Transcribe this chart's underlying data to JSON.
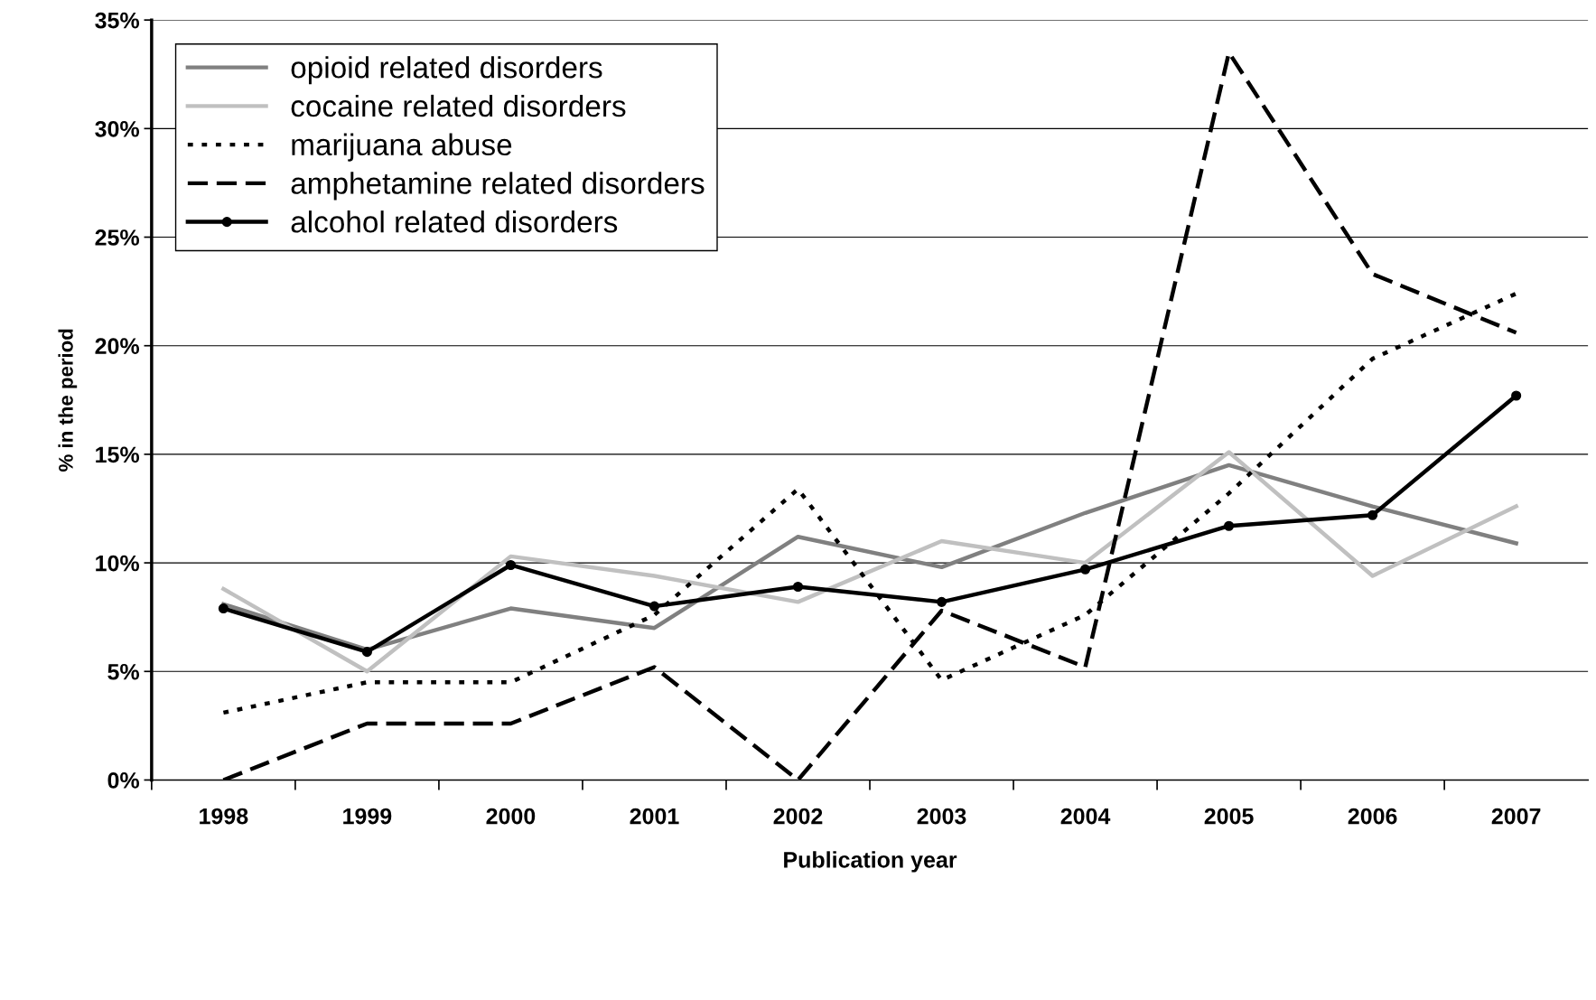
{
  "chart_data": {
    "type": "line",
    "xlabel": "Publication year",
    "ylabel": "% in the period",
    "categories": [
      "1998",
      "1999",
      "2000",
      "2001",
      "2002",
      "2003",
      "2004",
      "2005",
      "2006",
      "2007"
    ],
    "ylim": [
      0,
      35
    ],
    "yticks": [
      {
        "value": 0,
        "label": "0%"
      },
      {
        "value": 5,
        "label": "5%"
      },
      {
        "value": 10,
        "label": "10%"
      },
      {
        "value": 15,
        "label": "15%"
      },
      {
        "value": 20,
        "label": "20%"
      },
      {
        "value": 25,
        "label": "25%"
      },
      {
        "value": 30,
        "label": "30%"
      },
      {
        "value": 35,
        "label": "35%"
      }
    ],
    "grid": "y",
    "legend": "top left",
    "series": [
      {
        "name": "opioid related disorders",
        "color": "#808080",
        "line_style": "solid",
        "marker": "none",
        "values": [
          8.1,
          6.0,
          7.9,
          7.0,
          11.2,
          9.8,
          12.3,
          14.5,
          12.6,
          10.9
        ]
      },
      {
        "name": "cocaine related disorders",
        "color": "#c0c0c0",
        "line_style": "solid",
        "marker": "none",
        "values": [
          8.8,
          5.0,
          10.3,
          9.4,
          8.2,
          11.0,
          10.0,
          15.1,
          9.4,
          12.6
        ]
      },
      {
        "name": "marijuana abuse",
        "color": "#000000",
        "line_style": "dotted",
        "marker": "none",
        "values": [
          3.1,
          4.5,
          4.5,
          7.6,
          13.4,
          4.6,
          7.6,
          13.2,
          19.4,
          22.4
        ]
      },
      {
        "name": "amphetamine related disorders",
        "color": "#000000",
        "line_style": "dashed",
        "marker": "none",
        "values": [
          0,
          2.6,
          2.6,
          5.2,
          0,
          7.8,
          5.2,
          33.5,
          23.3,
          20.6
        ]
      },
      {
        "name": "alcohol related disorders",
        "color": "#000000",
        "line_style": "solid",
        "marker": "circle",
        "values": [
          7.9,
          5.9,
          9.9,
          8.0,
          8.9,
          8.2,
          9.7,
          11.7,
          12.2,
          17.7
        ]
      }
    ]
  }
}
